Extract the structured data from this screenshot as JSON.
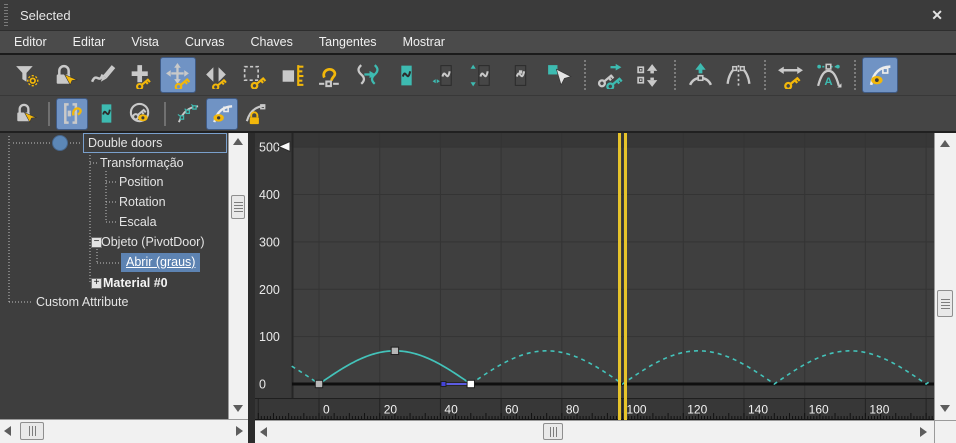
{
  "colors": {
    "accent_blue": "#7093c4",
    "selection_blue": "#5d83b2",
    "icon_yellow": "#f2b70a",
    "icon_teal": "#3dbbb1",
    "icon_gray": "#c9c9c9",
    "curve_teal": "#43c3ba",
    "time_slider_yellow": "#e6c32b",
    "tangent_blue": "#5c5ce2"
  },
  "window": {
    "title": "Selected",
    "close_icon": "✕"
  },
  "menu_bar": {
    "items": [
      {
        "label": "Editor"
      },
      {
        "label": "Editar"
      },
      {
        "label": "Vista"
      },
      {
        "label": "Curvas"
      },
      {
        "label": "Chaves"
      },
      {
        "label": "Tangentes"
      },
      {
        "label": "Mostrar"
      }
    ]
  },
  "toolbar_main": {
    "buttons": [
      {
        "name": "filters",
        "icon": "filter-gear-icon"
      },
      {
        "name": "lock-selection",
        "icon": "lock-cursor-icon"
      },
      {
        "name": "draw-curves",
        "icon": "pencil-curve-icon"
      },
      {
        "name": "add-keys",
        "icon": "plus-key-icon"
      },
      {
        "name": "move-keys",
        "icon": "move-key-icon",
        "active": true
      },
      {
        "name": "slide-keys",
        "icon": "slide-key-icon"
      },
      {
        "name": "scale-keys",
        "icon": "scale-key-icon"
      },
      {
        "name": "scale-values",
        "icon": "scale-values-icon"
      },
      {
        "name": "retime",
        "icon": "retime-icon"
      },
      {
        "name": "simplify-curve",
        "icon": "simplify-curve-icon"
      },
      {
        "name": "show-selected-curves",
        "icon": "box-curve-filled-icon"
      },
      {
        "name": "lock-keys-horizontal",
        "icon": "box-curve-h-icon"
      },
      {
        "name": "lock-keys-vertical",
        "icon": "box-curve-v-icon"
      },
      {
        "name": "freeze-non-selected-curves",
        "icon": "box-curve-icon"
      },
      {
        "name": "select-curve",
        "icon": "select-cursor-icon"
      },
      {
        "separator": true
      },
      {
        "name": "offset-keys",
        "icon": "dual-key-icon"
      },
      {
        "name": "nudge-keys",
        "icon": "nudge-keys-icon"
      },
      {
        "separator": true
      },
      {
        "name": "raise-tangent",
        "icon": "tangent-up-icon"
      },
      {
        "name": "break-tangents",
        "icon": "break-tangent-icon"
      },
      {
        "separator": true
      },
      {
        "name": "spread-keys",
        "icon": "spread-key-icon"
      },
      {
        "name": "auto-tangent",
        "icon": "auto-tangent-icon"
      },
      {
        "separator": true
      },
      {
        "name": "show-curve-visibility",
        "icon": "curve-eye-icon",
        "active": true
      }
    ]
  },
  "toolbar_display": {
    "buttons": [
      {
        "name": "lock-keyable",
        "icon": "lock-cursor-icon"
      },
      {
        "separator": true
      },
      {
        "name": "show-key-ranges",
        "icon": "bracket-curve-icon",
        "active": true
      },
      {
        "name": "show-curves",
        "icon": "box-curve-filled-icon"
      },
      {
        "name": "show-keyable-icons",
        "icon": "key-eye-circle-icon"
      },
      {
        "separator": true
      },
      {
        "name": "show-all-tangents",
        "icon": "multi-tangent-icon"
      },
      {
        "name": "show-tangents",
        "icon": "tangent-eye-icon",
        "active": true
      },
      {
        "name": "lock-tangents",
        "icon": "tangent-lock-icon"
      }
    ]
  },
  "tree_panel": {
    "items": [
      {
        "label": "Double doors",
        "selected_outline": true
      },
      {
        "label": "Transformação"
      },
      {
        "label": "Position"
      },
      {
        "label": "Rotation"
      },
      {
        "label": "Escala"
      },
      {
        "label": "Objeto (PivotDoor)",
        "expander_glyph": "−"
      },
      {
        "label": "Abrir (graus)",
        "selected": true
      },
      {
        "label": "Material #0",
        "expander_glyph": "+",
        "bold": true
      },
      {
        "label": "Custom Attribute"
      }
    ]
  },
  "chart_data": {
    "type": "line",
    "grid": true,
    "x_ticks": [
      0,
      20,
      40,
      60,
      80,
      100,
      120,
      140,
      160,
      180
    ],
    "y_ticks": [
      0,
      100,
      200,
      300,
      400,
      500
    ],
    "x_range": [
      -9,
      201
    ],
    "y_range": [
      -70,
      530
    ],
    "series": [
      {
        "name": "Abrir (graus)",
        "color": "#43c3ba",
        "keys": [
          {
            "t": 0,
            "v": 0
          },
          {
            "t": 25,
            "v": 70
          },
          {
            "t": 50,
            "v": 0
          }
        ],
        "out_of_range": "loop",
        "period": 50,
        "amplitude": 70,
        "solid_range": [
          0,
          50
        ],
        "dashed_range": [
          -9,
          201
        ]
      }
    ],
    "selected_key": {
      "t": 50,
      "v": 0
    },
    "tangent_handle": {
      "t_from": 50,
      "t_to": 41,
      "v": 0
    },
    "time_slider": {
      "frame": 100
    }
  }
}
